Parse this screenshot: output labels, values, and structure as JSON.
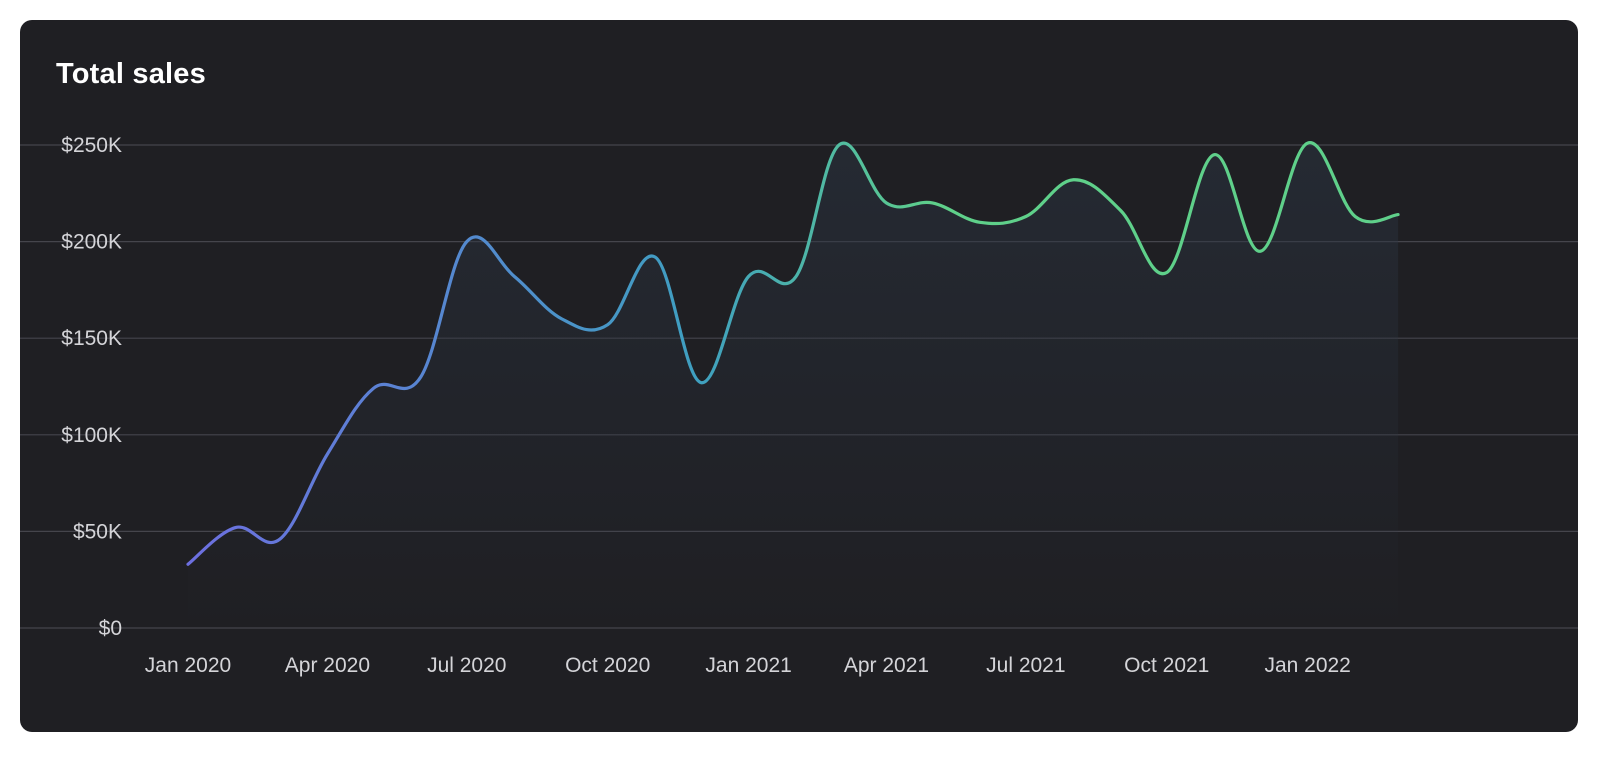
{
  "card": {
    "title": "Total sales"
  },
  "colors": {
    "background": "#1f1f23",
    "page_background": "#ffffff",
    "gridline": "#45454c",
    "tick_text": "#d4d4d8",
    "title_text": "#ffffff",
    "line_gradient_start": "#6d6fe0",
    "line_gradient_mid": "#3f9fc0",
    "line_gradient_end": "#5fd08a",
    "area_fill": "#2a3340"
  },
  "chart_data": {
    "type": "line",
    "title": "Total sales",
    "xlabel": "",
    "ylabel": "",
    "ylim": [
      0,
      250000
    ],
    "xlim": [
      "2020-01-01",
      "2022-03-31"
    ],
    "yticks": [
      0,
      50000,
      100000,
      150000,
      200000,
      250000
    ],
    "ytick_labels": [
      "$0",
      "$50K",
      "$100K",
      "$150K",
      "$200K",
      "$250K"
    ],
    "xticks": [
      "2020-01-01",
      "2020-04-01",
      "2020-07-01",
      "2020-10-01",
      "2021-01-01",
      "2021-04-01",
      "2021-07-01",
      "2021-10-01",
      "2022-01-01"
    ],
    "xtick_labels": [
      "Jan 2020",
      "Apr 2020",
      "Jul 2020",
      "Oct 2020",
      "Jan 2021",
      "Apr 2021",
      "Jul 2021",
      "Oct 2021",
      "Jan 2022"
    ],
    "grid": true,
    "legend": "none",
    "series": [
      {
        "x": [
          "2020-01-01",
          "2020-02-01",
          "2020-03-01",
          "2020-04-01",
          "2020-05-01",
          "2020-06-01",
          "2020-07-01",
          "2020-08-01",
          "2020-09-01",
          "2020-10-01",
          "2020-11-01",
          "2020-12-01",
          "2021-01-01",
          "2021-02-01",
          "2021-03-01",
          "2021-04-01",
          "2021-05-01",
          "2021-06-01",
          "2021-07-01",
          "2021-08-01",
          "2021-09-01",
          "2021-10-01",
          "2021-11-01",
          "2021-12-01",
          "2022-01-01",
          "2022-02-01",
          "2022-03-01"
        ],
        "values": [
          33000,
          52000,
          46000,
          90000,
          124000,
          130000,
          200000,
          182000,
          160000,
          157000,
          192000,
          127000,
          182000,
          182000,
          250000,
          220000,
          220000,
          210000,
          213000,
          232000,
          216000,
          184000,
          245000,
          195000,
          251000,
          213000,
          214000
        ]
      }
    ]
  }
}
